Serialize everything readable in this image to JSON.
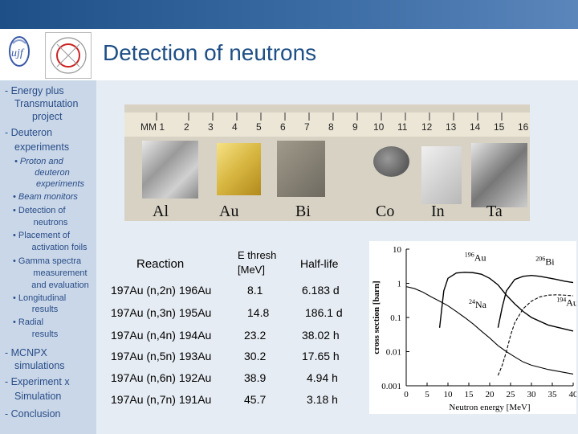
{
  "title": "Detection of neutrons",
  "sidebar": {
    "items": [
      "- Energy plus",
      "Transmutation",
      "project",
      "- Deuteron",
      "experiments"
    ],
    "subitems": [
      "• Proton and",
      "deuteron",
      "experiments",
      "• Beam monitors",
      "• Detection of",
      "neutrons",
      "• Placement of",
      "activation foils",
      "• Gamma spectra",
      "measurement",
      "and evaluation",
      "• Longitudinal",
      "results",
      "• Radial",
      "results"
    ],
    "bottom": [
      "- MCNPX",
      "simulations",
      "- Experiment x",
      "Simulation",
      "- Conclusion"
    ]
  },
  "photo": {
    "ruler_numbers": [
      "MM 1",
      "2",
      "3",
      "4",
      "5",
      "6",
      "7",
      "8",
      "9",
      "10",
      "11",
      "12",
      "13",
      "14",
      "15",
      "16"
    ],
    "labels": [
      "Al",
      "Au",
      "Bi",
      "Co",
      "In",
      "Ta"
    ]
  },
  "table": {
    "header": {
      "reaction": "Reaction",
      "e_thresh": "E thresh",
      "e_unit": "[MeV]",
      "half_life": "Half-life"
    },
    "rows": [
      {
        "reaction": "197Au (n,2n) 196Au",
        "e": "8.1",
        "half_life": "6.183 d"
      },
      {
        "reaction": "197Au (n,3n) 195Au",
        "e": "14.8",
        "half_life": "186.1 d"
      },
      {
        "reaction": "197Au (n,4n) 194Au",
        "e": "23.2",
        "half_life": "38.02 h"
      },
      {
        "reaction": "197Au (n,5n) 193Au",
        "e": "30.2",
        "half_life": "17.65 h"
      },
      {
        "reaction": "197Au (n,6n) 192Au",
        "e": "38.9",
        "half_life": "4.94 h"
      },
      {
        "reaction": "197Au (n,7n) 191Au",
        "e": "45.7",
        "half_life": "3.18 h"
      }
    ]
  },
  "chart_data": {
    "type": "line",
    "xlabel": "Neutron energy [MeV]",
    "ylabel": "cross section [barn]",
    "x_ticks": [
      0,
      5,
      10,
      15,
      20,
      25,
      30,
      35,
      40
    ],
    "y_ticks": [
      "10",
      "1",
      "0.1",
      "0.01",
      "0.001"
    ],
    "xlim": [
      0,
      40
    ],
    "ylim": [
      0.001,
      10
    ],
    "yscale": "log",
    "series": [
      {
        "name": "196Au",
        "x": [
          8,
          9,
          10,
          12,
          14,
          16,
          18,
          20,
          22,
          24,
          26,
          28,
          30,
          34,
          40
        ],
        "y": [
          0.05,
          0.6,
          1.4,
          2.0,
          2.1,
          2.05,
          1.85,
          1.4,
          0.9,
          0.45,
          0.25,
          0.15,
          0.1,
          0.06,
          0.04
        ]
      },
      {
        "name": "206Bi",
        "x": [
          22,
          23,
          24,
          26,
          28,
          30,
          32,
          34,
          36,
          38,
          40
        ],
        "y": [
          0.05,
          0.2,
          0.6,
          1.3,
          1.6,
          1.7,
          1.6,
          1.45,
          1.3,
          1.15,
          1.05
        ]
      },
      {
        "name": "24Na",
        "x": [
          0,
          2,
          4,
          6,
          8,
          10,
          12,
          14,
          16,
          18,
          20,
          22,
          24,
          26,
          28,
          30,
          34,
          40
        ],
        "y": [
          0.8,
          0.7,
          0.55,
          0.4,
          0.3,
          0.22,
          0.15,
          0.1,
          0.065,
          0.04,
          0.025,
          0.015,
          0.01,
          0.007,
          0.005,
          0.004,
          0.003,
          0.0022
        ]
      },
      {
        "name": "194Au",
        "x": [
          22,
          23,
          24,
          25,
          26,
          28,
          30,
          32,
          34,
          36,
          38,
          40
        ],
        "y": [
          0.002,
          0.004,
          0.01,
          0.03,
          0.07,
          0.18,
          0.3,
          0.4,
          0.45,
          0.46,
          0.45,
          0.43
        ]
      }
    ],
    "labels": [
      {
        "text": "196Au",
        "sup": "196",
        "base": "Au"
      },
      {
        "text": "206Bi",
        "sup": "206",
        "base": "Bi"
      },
      {
        "text": "24Na",
        "sup": "24",
        "base": "Na"
      },
      {
        "text": "194Au",
        "sup": "194",
        "base": "Au"
      }
    ]
  }
}
